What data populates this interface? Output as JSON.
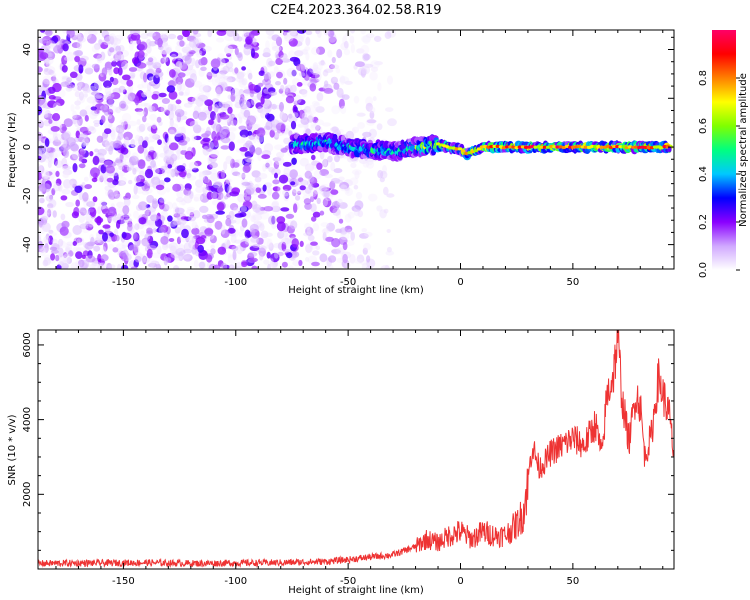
{
  "title": "C2E4.2023.364.02.58.R19",
  "chart_data": [
    {
      "type": "heatmap",
      "xlabel": "Height of straight line (km)",
      "ylabel": "Frequency (Hz)",
      "xlim": [
        -188,
        95
      ],
      "ylim": [
        -50,
        48
      ],
      "xticks": [
        -150,
        -100,
        -50,
        0,
        50
      ],
      "yticks": [
        -40,
        -20,
        0,
        20,
        40
      ],
      "colorbar": {
        "label": "Normalized spectral amplitude",
        "range": [
          0,
          1
        ],
        "ticks": [
          0.0,
          0.2,
          0.4,
          0.6,
          0.8
        ],
        "tick_labels": [
          "0.0",
          "0.2",
          "0.4",
          "0.6",
          "0.8"
        ],
        "colors": [
          "#ffffff",
          "#d0a8ff",
          "#8a00ff",
          "#0000ff",
          "#00c8ff",
          "#00ff80",
          "#80ff00",
          "#ffff00",
          "#ff8000",
          "#ff0000",
          "#ff0066"
        ]
      },
      "regions": [
        {
          "description": "diffuse noise",
          "x": [
            -188,
            -30
          ],
          "amplitude": [
            0.02,
            0.25
          ]
        },
        {
          "description": "signal band",
          "x": [
            -75,
            93
          ],
          "frequency_center": 0,
          "amplitude_peak": 0.95
        }
      ],
      "signal_track": {
        "x": [
          -75,
          -60,
          -50,
          -40,
          -30,
          -20,
          -10,
          0,
          3,
          5,
          8,
          10,
          20,
          30,
          40,
          50,
          60,
          70,
          80,
          90
        ],
        "frequency": [
          1,
          2,
          0,
          -1,
          -2,
          0,
          1,
          -1,
          -3,
          -2,
          -1,
          0,
          0,
          0,
          0,
          0,
          0,
          0,
          0,
          0
        ]
      }
    },
    {
      "type": "line",
      "xlabel": "Height of straight line (km)",
      "ylabel": "SNR (10 * v/v)",
      "xlim": [
        -188,
        95
      ],
      "ylim": [
        0,
        6400
      ],
      "xticks": [
        -150,
        -100,
        -50,
        0,
        50
      ],
      "yticks": [
        2000,
        4000,
        6000
      ],
      "color": "#ee3333",
      "series": [
        {
          "x": [
            -188,
            -160,
            -140,
            -120,
            -100,
            -80,
            -60,
            -50,
            -40,
            -30,
            -20,
            -15,
            -10,
            -5,
            0,
            5,
            10,
            15,
            20,
            25,
            28,
            32,
            35,
            38,
            40,
            45,
            50,
            55,
            60,
            63,
            65,
            68,
            70,
            72,
            75,
            78,
            80,
            82,
            85,
            88,
            90,
            93,
            95
          ],
          "y": [
            150,
            160,
            170,
            150,
            160,
            170,
            200,
            250,
            320,
            380,
            600,
            800,
            700,
            900,
            1000,
            800,
            1000,
            900,
            900,
            1200,
            1500,
            3300,
            2700,
            2900,
            3100,
            3300,
            3500,
            3300,
            3900,
            3000,
            4600,
            5200,
            6200,
            4500,
            3400,
            4700,
            4400,
            3000,
            3600,
            5100,
            4700,
            4100,
            3000
          ]
        }
      ]
    }
  ]
}
